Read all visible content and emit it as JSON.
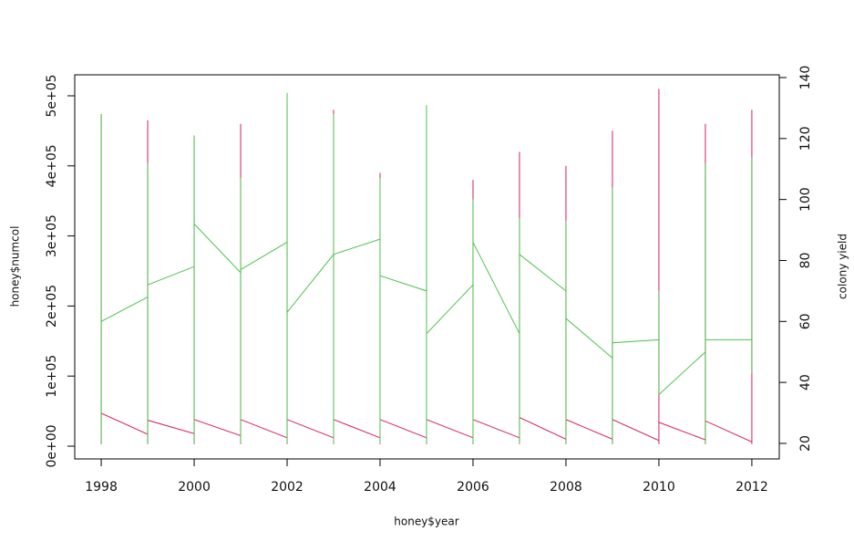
{
  "chart_data": {
    "type": "line",
    "xlabel": "honey$year",
    "ylabel": "honey$numcol",
    "y2label": "colony yield",
    "x": [
      1998,
      1998,
      1998,
      1998,
      1999,
      1999,
      1999,
      1999,
      2000,
      2000,
      2000,
      2000,
      2001,
      2001,
      2001,
      2001,
      2002,
      2002,
      2002,
      2002,
      2003,
      2003,
      2003,
      2003,
      2004,
      2004,
      2004,
      2004,
      2005,
      2005,
      2005,
      2005,
      2006,
      2006,
      2006,
      2006,
      2007,
      2007,
      2007,
      2007,
      2008,
      2008,
      2008,
      2008,
      2009,
      2009,
      2009,
      2009,
      2010,
      2010,
      2010,
      2010,
      2011,
      2011,
      2011,
      2011,
      2012,
      2012,
      2012,
      2012
    ],
    "series": [
      {
        "color": "#d81b60",
        "values": [
          3000,
          474000,
          3000,
          47000,
          17000,
          465000,
          3000,
          37000,
          18000,
          440000,
          3000,
          38000,
          15000,
          460000,
          3000,
          38000,
          12000,
          490000,
          3000,
          38000,
          12000,
          480000,
          3000,
          38000,
          12000,
          390000,
          3000,
          38000,
          12000,
          470000,
          3000,
          38000,
          12000,
          380000,
          3000,
          38000,
          12000,
          420000,
          3000,
          41000,
          10000,
          400000,
          3000,
          38000,
          10000,
          450000,
          3000,
          38000,
          8000,
          510000,
          3000,
          34000,
          9000,
          460000,
          3000,
          36000,
          6000,
          480000,
          3000,
          3000
        ]
      },
      {
        "color": "#4cc34c",
        "axis": "y2",
        "values": [
          20,
          128,
          20,
          60,
          68,
          112,
          20,
          72,
          78,
          121,
          20,
          92,
          76,
          107,
          20,
          77,
          86,
          135,
          20,
          63,
          82,
          128,
          20,
          82,
          87,
          107,
          20,
          75,
          70,
          131,
          20,
          56,
          72,
          100,
          20,
          86,
          56,
          94,
          20,
          82,
          70,
          93,
          20,
          61,
          48,
          104,
          20,
          53,
          54,
          70,
          36,
          36,
          50,
          112,
          20,
          54,
          54,
          114,
          43,
          43
        ]
      }
    ],
    "xlim": [
      1997.43,
      2012.59
    ],
    "xticks": [
      1998,
      2000,
      2002,
      2004,
      2006,
      2008,
      2010,
      2012
    ],
    "ylim": [
      -18230,
      529950
    ],
    "yticks": [
      {
        "value": 0,
        "label": "0e+00"
      },
      {
        "value": 100000,
        "label": "1e+05"
      },
      {
        "value": 200000,
        "label": "2e+05"
      },
      {
        "value": 300000,
        "label": "3e+05"
      },
      {
        "value": 400000,
        "label": "4e+05"
      },
      {
        "value": 500000,
        "label": "5e+05"
      }
    ],
    "y2lim": [
      14.9,
      140.9
    ],
    "y2ticks": [
      20,
      40,
      60,
      80,
      100,
      120,
      140
    ]
  }
}
